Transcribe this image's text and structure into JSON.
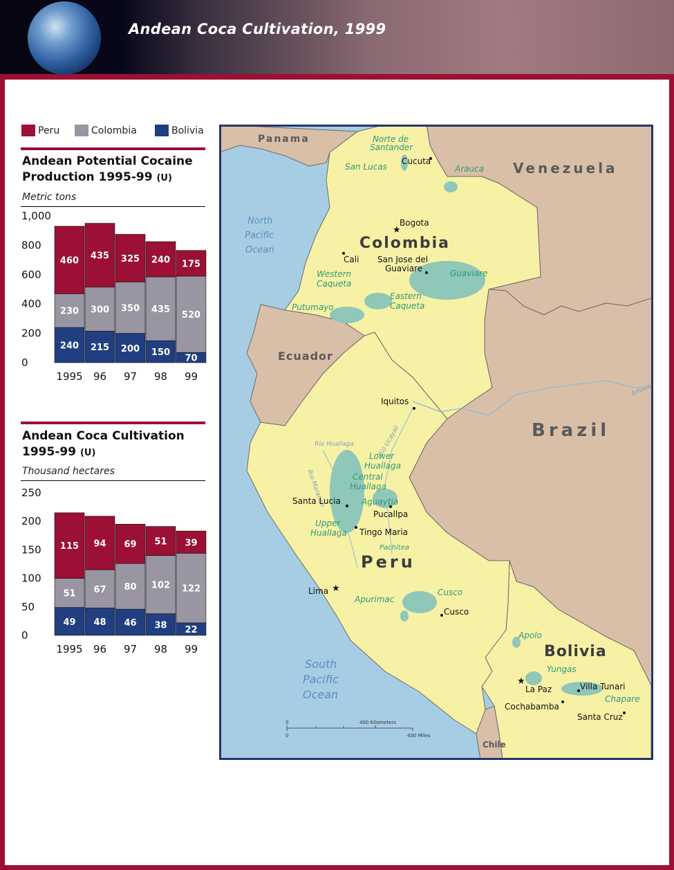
{
  "header": {
    "title": "Andean Coca Cultivation, 1999"
  },
  "legend": [
    {
      "label": "Peru",
      "color": "#9b1034"
    },
    {
      "label": "Colombia",
      "color": "#9a95a2"
    },
    {
      "label": "Bolivia",
      "color": "#213f80"
    }
  ],
  "chart_data": [
    {
      "type": "bar",
      "stacked": true,
      "title": "Andean Potential Cocaine Production 1995-99",
      "title_lines": [
        "Andean Potential Cocaine",
        "Production 1995-99"
      ],
      "title_tag": "(U)",
      "ylabel": "Metric tons",
      "categories": [
        "1995",
        "96",
        "97",
        "98",
        "99"
      ],
      "ylim": [
        0,
        1000
      ],
      "yticks": [
        "0",
        "200",
        "400",
        "600",
        "800",
        "1,000"
      ],
      "series": [
        {
          "name": "Bolivia",
          "values": [
            240,
            215,
            200,
            150,
            70
          ],
          "color": "#213f80"
        },
        {
          "name": "Colombia",
          "values": [
            230,
            300,
            350,
            435,
            520
          ],
          "color": "#9a95a2"
        },
        {
          "name": "Peru",
          "values": [
            460,
            435,
            325,
            240,
            175
          ],
          "color": "#9b1034"
        }
      ]
    },
    {
      "type": "bar",
      "stacked": true,
      "title": "Andean Coca Cultivation 1995-99",
      "title_lines": [
        "Andean Coca Cultivation",
        "1995-99"
      ],
      "title_tag": "(U)",
      "ylabel": "Thousand hectares",
      "categories": [
        "1995",
        "96",
        "97",
        "98",
        "99"
      ],
      "ylim": [
        0,
        250
      ],
      "yticks": [
        "0",
        "50",
        "100",
        "150",
        "200",
        "250"
      ],
      "series": [
        {
          "name": "Bolivia",
          "values": [
            49,
            48,
            46,
            38,
            22
          ],
          "color": "#213f80"
        },
        {
          "name": "Colombia",
          "values": [
            51,
            67,
            80,
            102,
            122
          ],
          "color": "#9a95a2"
        },
        {
          "name": "Peru",
          "values": [
            115,
            94,
            69,
            51,
            39
          ],
          "color": "#9b1034"
        }
      ]
    }
  ],
  "map": {
    "countries_foreign": [
      "Panama",
      "Venezuela",
      "Ecuador",
      "Brazil",
      "Chile"
    ],
    "countries_focus": [
      "Colombia",
      "Peru",
      "Bolivia"
    ],
    "oceans": [
      [
        "North",
        "Pacific",
        "Ocean"
      ],
      [
        "South",
        "Pacific",
        "Ocean"
      ]
    ],
    "cities": [
      "Cucuta",
      "Bogota",
      "Cali",
      "San Jose del",
      "Guaviare",
      "Iquitos",
      "Santa Lucia",
      "Pucallpa",
      "Tingo Maria",
      "Lima",
      "Cusco",
      "La Paz",
      "Villa Tunari",
      "Cochabamba",
      "Santa Cruz"
    ],
    "coca_regions": [
      "Norte de",
      "Santander",
      "San Lucas",
      "Arauca",
      "Guaviare",
      "Western",
      "Caqueta",
      "Eastern",
      "Caqueta",
      "Putumayo",
      "Lower",
      "Huallaga",
      "Central",
      "Huallaga",
      "Aguaytia",
      "Upper",
      "Huallaga",
      "Pachitea",
      "Apurimac",
      "Cusco",
      "Apolo",
      "Yungas",
      "Chapare"
    ],
    "rivers": [
      "Amazon",
      "Rio Huallaga",
      "Rio Ucayali",
      "Rio Maranon"
    ],
    "scale": {
      "km_label": "400 Kilometers",
      "mi_label": "400 Miles",
      "zero": "0"
    },
    "colors": {
      "focus_land": "#f7f1a6",
      "foreign_land": "#d9bfa7",
      "water": "#a6cde3",
      "coca": "#8fc7b8",
      "coca_text": "#2f9a7a",
      "water_text": "#5a8fc0",
      "frame": "#24346e"
    }
  }
}
